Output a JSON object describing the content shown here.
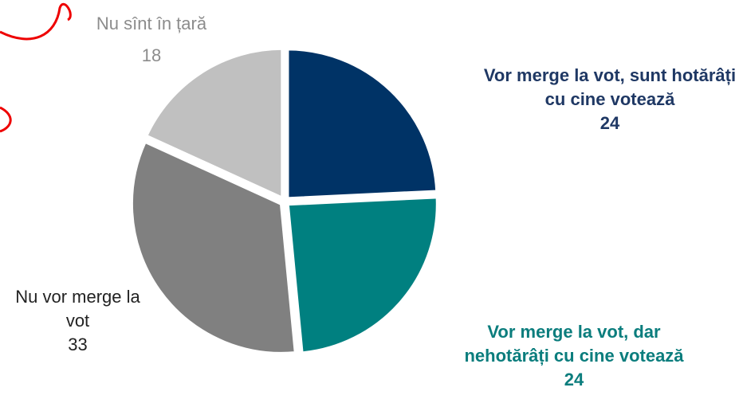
{
  "chart_data": {
    "type": "pie",
    "categories": [
      "Vor merge la vot, sunt hotărâți cu cine votează",
      "Vor merge la vot, dar nehotărâți cu cine votează",
      "Nu vor merge la vot",
      "Nu sînt în țară"
    ],
    "values": [
      24,
      24,
      33,
      18
    ],
    "colors": [
      "#003366",
      "#008080",
      "#808080",
      "#c0c0c0"
    ]
  }
}
